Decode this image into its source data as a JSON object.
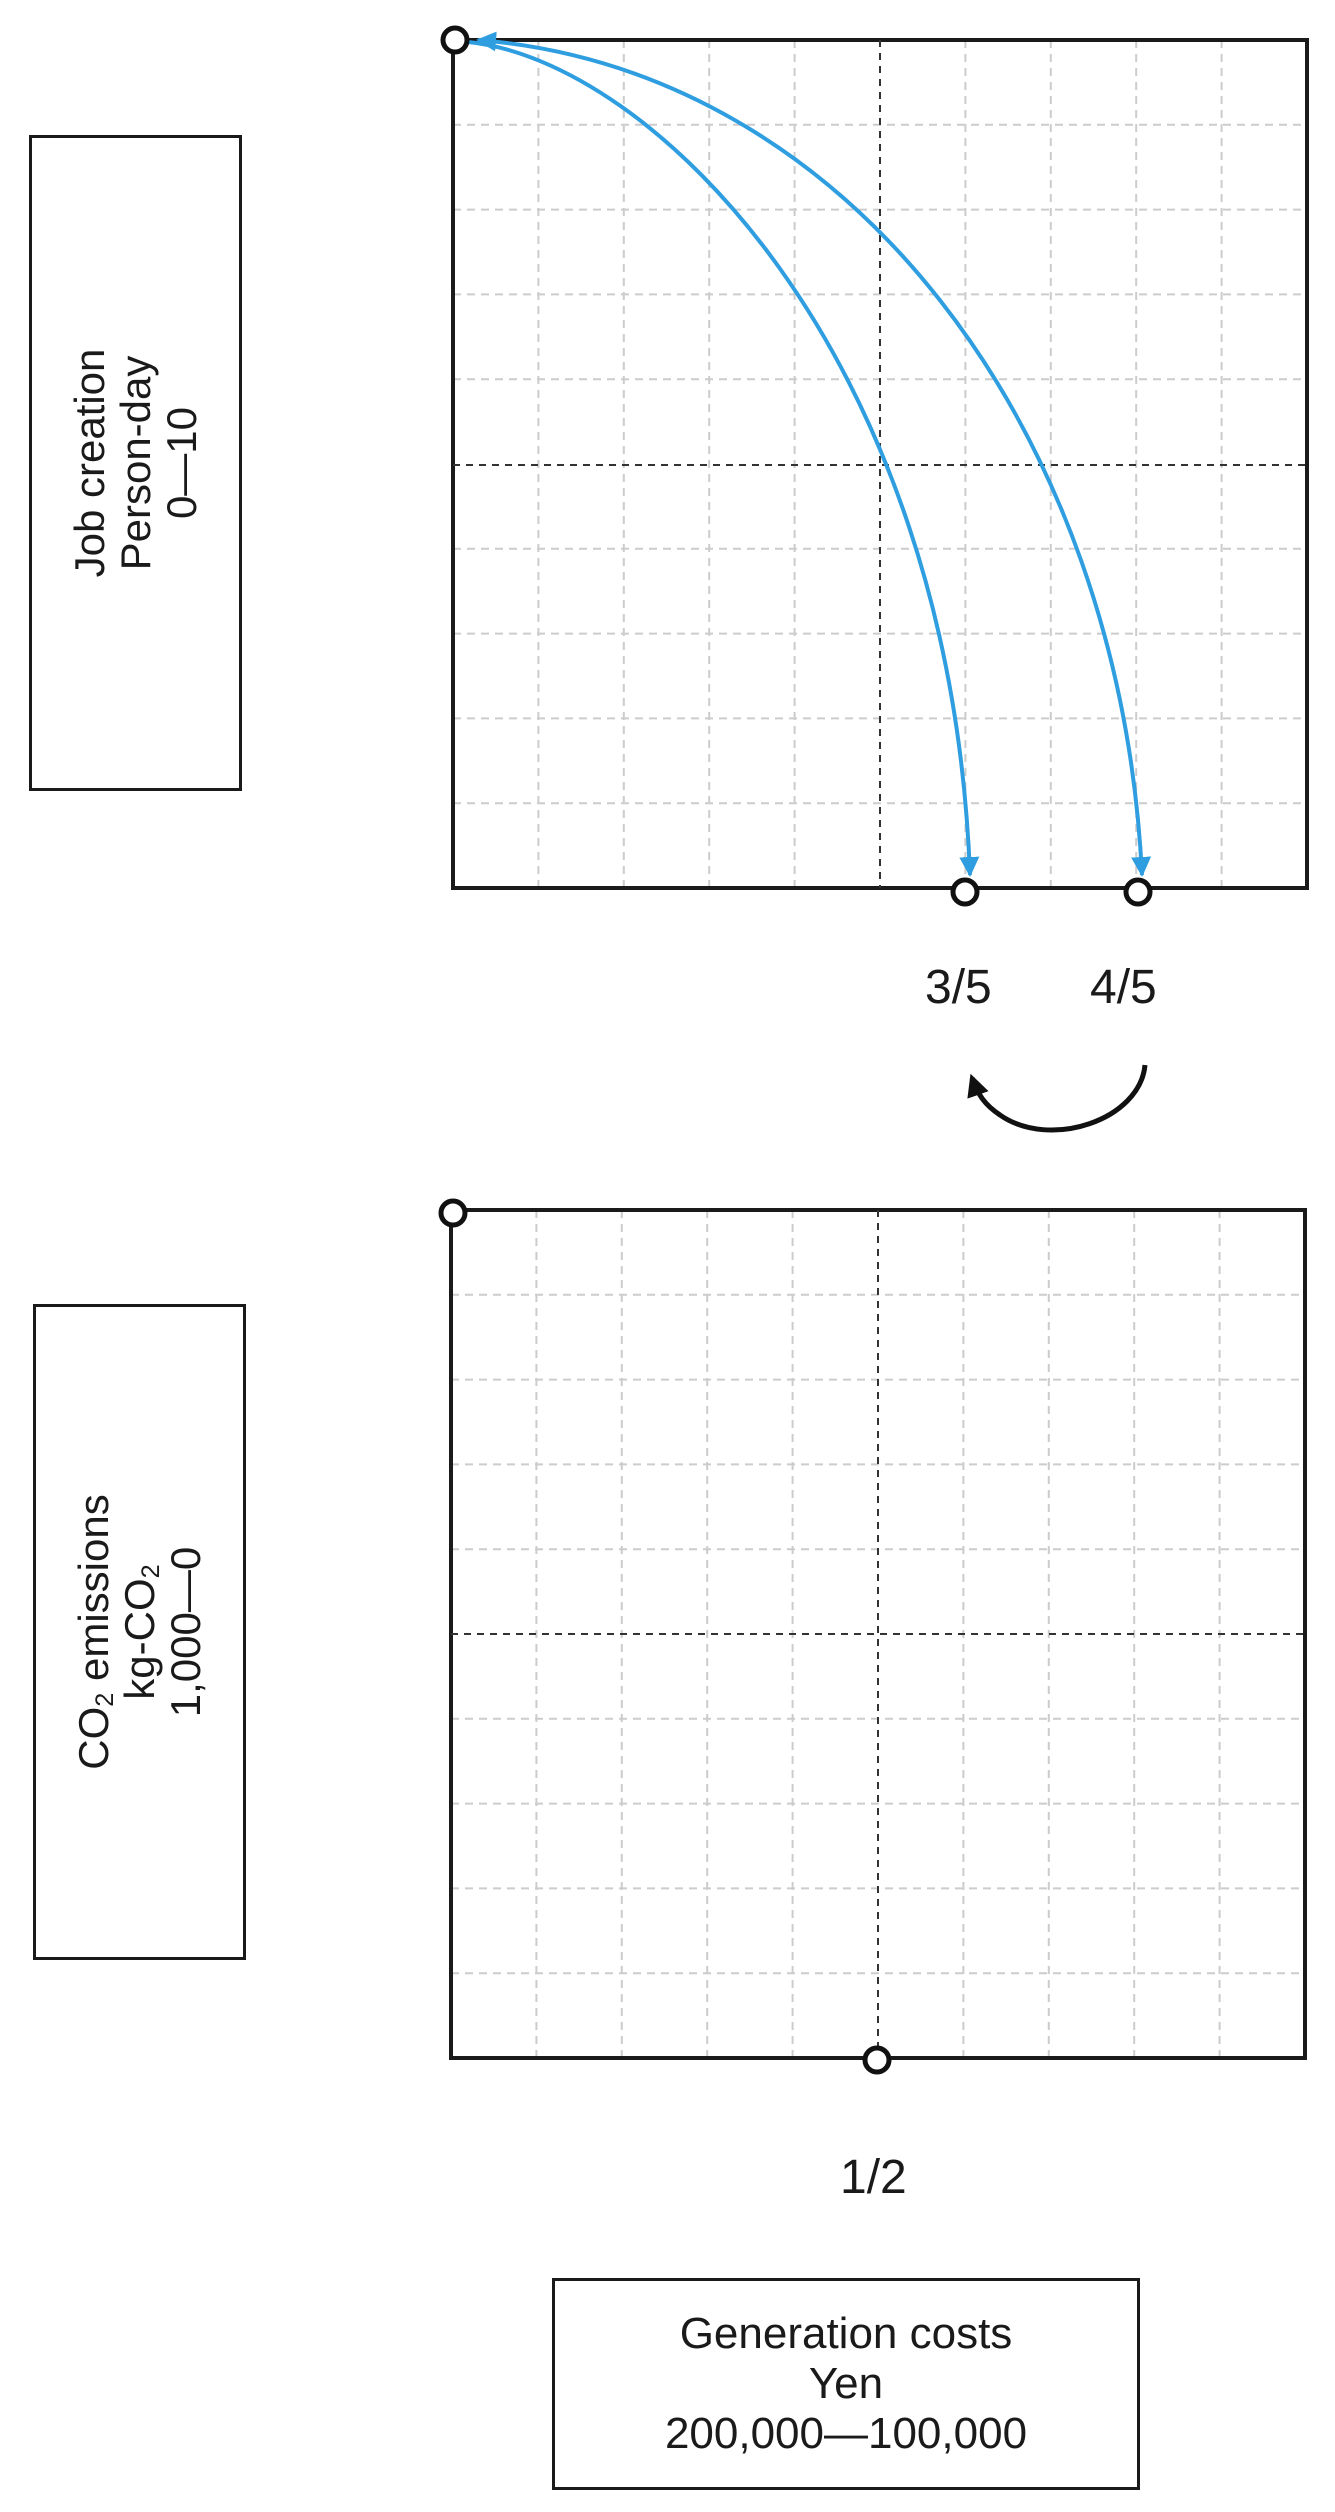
{
  "job_axis": {
    "title": "Job creation",
    "unit": "Person-day",
    "range": "0—10"
  },
  "co2_axis": {
    "title_main": "CO",
    "title_sub": "2",
    "title_rest": " emissions",
    "unit_main": "kg-CO",
    "unit_sub": "2",
    "range": "1,000—0"
  },
  "cost_axis": {
    "title": "Generation costs",
    "unit": "Yen",
    "range": "200,000—100,000"
  },
  "fractions": {
    "three_fifths": "3/5",
    "four_fifths": "4/5",
    "one_half": "1/2"
  },
  "colors": {
    "arrow_blue": "#2f9ee0",
    "frame": "#1a1a1a",
    "grid": "#cccccc"
  },
  "markers": {
    "top_chart": {
      "anchor_fraction": 0,
      "points": [
        0.6,
        0.8
      ]
    },
    "bottom_chart": {
      "anchor_fraction": 0,
      "point": 0.5
    }
  }
}
